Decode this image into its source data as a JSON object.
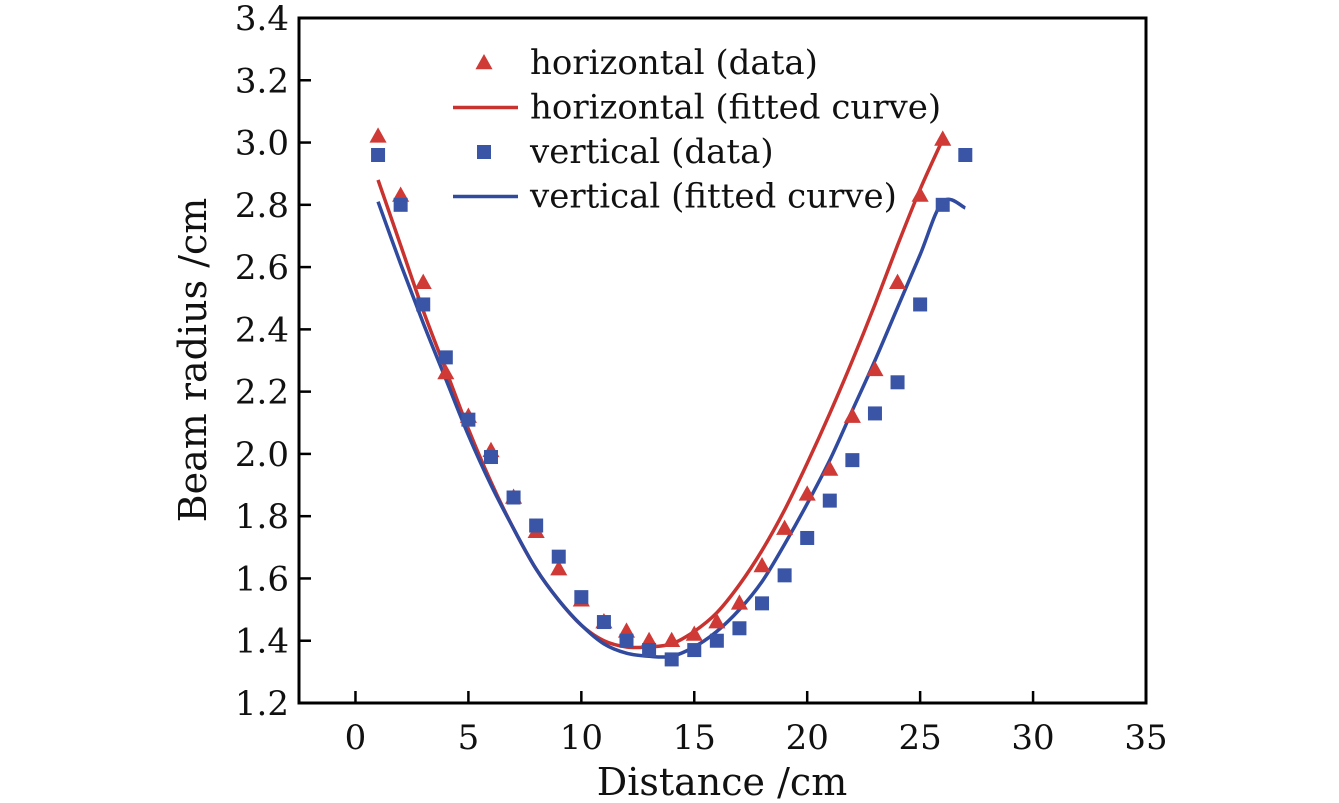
{
  "chart_data": {
    "type": "scatter",
    "xlabel": "Distance /cm",
    "ylabel": "Beam radius /cm",
    "xlim": [
      -2.5,
      35
    ],
    "ylim": [
      1.2,
      3.4
    ],
    "xticks": [
      0,
      5,
      10,
      15,
      20,
      25,
      30,
      35
    ],
    "yticks": [
      1.2,
      1.4,
      1.6,
      1.8,
      2.0,
      2.2,
      2.4,
      2.6,
      2.8,
      3.0,
      3.2,
      3.4
    ],
    "ytick_labels": [
      "1.2",
      "1.4",
      "1.6",
      "1.8",
      "2.0",
      "2.2",
      "2.4",
      "2.6",
      "2.8",
      "3.0",
      "3.2",
      "3.4"
    ],
    "legend_position": "top-center",
    "grid": false,
    "series": [
      {
        "name": "horizontal (data)",
        "kind": "scatter",
        "marker": "triangle",
        "color": "#d03a36",
        "x": [
          1,
          2,
          3,
          4,
          5,
          6,
          7,
          8,
          9,
          10,
          11,
          12,
          13,
          14,
          15,
          16,
          17,
          18,
          19,
          20,
          21,
          22,
          23,
          24,
          25,
          26
        ],
        "y": [
          3.02,
          2.83,
          2.55,
          2.26,
          2.12,
          2.01,
          1.86,
          1.75,
          1.63,
          1.53,
          1.46,
          1.43,
          1.4,
          1.4,
          1.42,
          1.46,
          1.52,
          1.64,
          1.76,
          1.87,
          1.95,
          2.12,
          2.27,
          2.55,
          2.83,
          3.01
        ]
      },
      {
        "name": "horizontal (fitted curve)",
        "kind": "line",
        "color": "#c8322f",
        "x": [
          1,
          2,
          3,
          4,
          5,
          6,
          7,
          8,
          9,
          10,
          11,
          12,
          13,
          14,
          15,
          16,
          17,
          18,
          19,
          20,
          21,
          22,
          23,
          24,
          25,
          26
        ],
        "y": [
          2.88,
          2.67,
          2.46,
          2.27,
          2.08,
          1.91,
          1.76,
          1.63,
          1.53,
          1.45,
          1.4,
          1.38,
          1.38,
          1.39,
          1.43,
          1.49,
          1.58,
          1.69,
          1.82,
          1.97,
          2.13,
          2.3,
          2.48,
          2.67,
          2.85,
          3.01
        ]
      },
      {
        "name": "vertical (data)",
        "kind": "scatter",
        "marker": "square",
        "color": "#3a55a6",
        "x": [
          1,
          2,
          3,
          4,
          5,
          6,
          7,
          8,
          9,
          10,
          11,
          12,
          13,
          14,
          15,
          16,
          17,
          18,
          19,
          20,
          21,
          22,
          23,
          24,
          25,
          26,
          27
        ],
        "y": [
          2.96,
          2.8,
          2.48,
          2.31,
          2.11,
          1.99,
          1.86,
          1.77,
          1.67,
          1.54,
          1.46,
          1.4,
          1.37,
          1.34,
          1.37,
          1.4,
          1.44,
          1.52,
          1.61,
          1.73,
          1.85,
          1.98,
          2.13,
          2.23,
          2.48,
          2.8,
          2.96
        ]
      },
      {
        "name": "vertical (fitted curve)",
        "kind": "line",
        "color": "#2f4a9e",
        "x": [
          1,
          2,
          3,
          4,
          5,
          6,
          7,
          8,
          9,
          10,
          11,
          12,
          13,
          14,
          15,
          16,
          17,
          18,
          19,
          20,
          21,
          22,
          23,
          24,
          25,
          26,
          27
        ],
        "y": [
          2.81,
          2.61,
          2.42,
          2.24,
          2.06,
          1.9,
          1.76,
          1.63,
          1.53,
          1.45,
          1.39,
          1.36,
          1.35,
          1.35,
          1.38,
          1.43,
          1.5,
          1.59,
          1.71,
          1.84,
          1.98,
          2.14,
          2.3,
          2.47,
          2.64,
          2.81,
          2.79
        ]
      }
    ]
  }
}
